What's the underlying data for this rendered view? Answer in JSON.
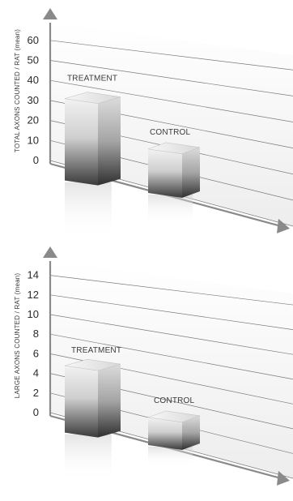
{
  "chart_data": [
    {
      "type": "bar",
      "categories": [
        "TREATMENT",
        "CONTROL"
      ],
      "values": [
        32,
        13
      ],
      "ylabel": "TOTAL AXONS COUNTED / RAT (mean)",
      "yticks": [
        "0",
        "10",
        "20",
        "30",
        "40",
        "50",
        "60"
      ],
      "ylim": [
        0,
        60
      ],
      "grid": true,
      "style": "3d",
      "colors": {
        "bar_light": "#f2f2f2",
        "bar_dark": "#3a3a3a",
        "grid": "#7a7a7a",
        "axis": "#8a8a8a"
      }
    },
    {
      "type": "bar",
      "categories": [
        "TREATMENT",
        "CONTROL"
      ],
      "values": [
        5,
        1
      ],
      "ylabel": "LARGE AXONS COUNTED / RAT (mean)",
      "yticks": [
        "0",
        "2",
        "4",
        "6",
        "8",
        "10",
        "12",
        "14"
      ],
      "ylim": [
        0,
        14
      ],
      "grid": true,
      "style": "3d",
      "colors": {
        "bar_light": "#f2f2f2",
        "bar_dark": "#3a3a3a",
        "grid": "#7a7a7a",
        "axis": "#8a8a8a"
      }
    }
  ]
}
